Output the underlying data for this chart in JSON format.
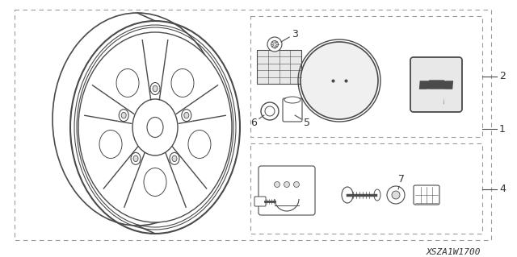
{
  "bg_color": "#ffffff",
  "lc": "#4a4a4a",
  "dc": "#999999",
  "part_code": "XSZA1W1700",
  "fig_w": 6.4,
  "fig_h": 3.19,
  "dpi": 100
}
